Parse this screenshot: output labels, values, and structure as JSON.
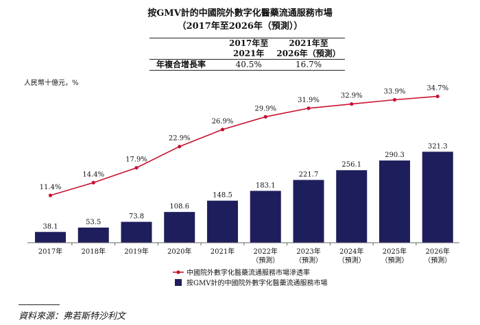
{
  "title_line1": "按GMV計的中國院外數字化醫藥流通服務市場",
  "title_line2": "（2017年至2026年（預測））",
  "cagr_table": {
    "col1": [
      "2017年至",
      "2021年"
    ],
    "col2": [
      "2021年至",
      "2026年（預測）"
    ],
    "row_label": "年複合增長率",
    "val1": "40.5%",
    "val2": "16.7%"
  },
  "unit_label": "人民幣十億元，%",
  "source": "資料來源：弗若斯特沙利文",
  "colors": {
    "bar": "#1e1e5c",
    "line": "#c8102e"
  },
  "chart_data": {
    "type": "bar",
    "categories": [
      [
        "2017年"
      ],
      [
        "2018年"
      ],
      [
        "2019年"
      ],
      [
        "2020年"
      ],
      [
        "2021年"
      ],
      [
        "2022年",
        "（預測）"
      ],
      [
        "2023年",
        "（預測）"
      ],
      [
        "2024年",
        "（預測）"
      ],
      [
        "2025年",
        "（預測）"
      ],
      [
        "2026年",
        "（預測）"
      ]
    ],
    "series": [
      {
        "name": "按GMV計的中國院外數字化醫藥流通服務市場",
        "type": "bar",
        "values": [
          38.1,
          53.5,
          73.8,
          108.6,
          148.5,
          183.1,
          221.7,
          256.1,
          290.3,
          321.3
        ],
        "labels": [
          "38.1",
          "53.5",
          "73.8",
          "108.6",
          "148.5",
          "183.1",
          "221.7",
          "256.1",
          "290.3",
          "321.3"
        ]
      },
      {
        "name": "中國院外數字化醫藥流通服務市場滲透率",
        "type": "line",
        "values": [
          11.4,
          14.4,
          17.9,
          22.9,
          26.9,
          29.9,
          31.9,
          32.9,
          33.9,
          34.7
        ],
        "labels": [
          "11.4%",
          "14.4%",
          "17.9%",
          "22.9%",
          "26.9%",
          "29.9%",
          "31.9%",
          "32.9%",
          "33.9%",
          "34.7%"
        ]
      }
    ],
    "legend_position": "bottom-left",
    "grid": false
  }
}
